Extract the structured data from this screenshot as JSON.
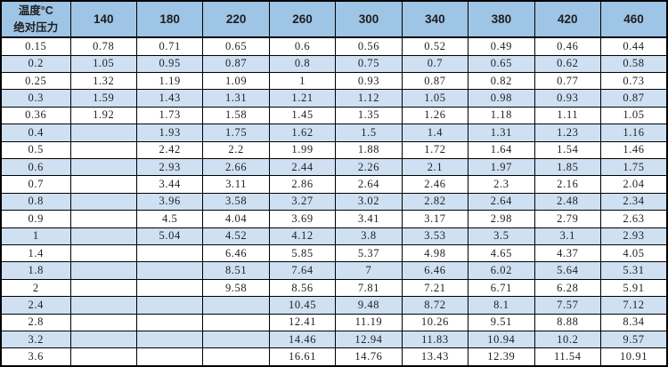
{
  "table": {
    "corner_line1": "温度°C",
    "corner_line2": "绝对压力",
    "temperature_columns": [
      "140",
      "180",
      "220",
      "260",
      "300",
      "340",
      "380",
      "420",
      "460"
    ],
    "rows": [
      {
        "pressure": "0.15",
        "values": [
          "0.78",
          "0.71",
          "0.65",
          "0.6",
          "0.56",
          "0.52",
          "0.49",
          "0.46",
          "0.44"
        ]
      },
      {
        "pressure": "0.2",
        "values": [
          "1.05",
          "0.95",
          "0.87",
          "0.8",
          "0.75",
          "0.7",
          "0.65",
          "0.62",
          "0.58"
        ]
      },
      {
        "pressure": "0.25",
        "values": [
          "1.32",
          "1.19",
          "1.09",
          "1",
          "0.93",
          "0.87",
          "0.82",
          "0.77",
          "0.73"
        ]
      },
      {
        "pressure": "0.3",
        "values": [
          "1.59",
          "1.43",
          "1.31",
          "1.21",
          "1.12",
          "1.05",
          "0.98",
          "0.93",
          "0.87"
        ]
      },
      {
        "pressure": "0.36",
        "values": [
          "1.92",
          "1.73",
          "1.58",
          "1.45",
          "1.35",
          "1.26",
          "1.18",
          "1.11",
          "1.05"
        ]
      },
      {
        "pressure": "0.4",
        "values": [
          "",
          "1.93",
          "1.75",
          "1.62",
          "1.5",
          "1.4",
          "1.31",
          "1.23",
          "1.16"
        ]
      },
      {
        "pressure": "0.5",
        "values": [
          "",
          "2.42",
          "2.2",
          "1.99",
          "1.88",
          "1.72",
          "1.64",
          "1.54",
          "1.46"
        ]
      },
      {
        "pressure": "0.6",
        "values": [
          "",
          "2.93",
          "2.66",
          "2.44",
          "2.26",
          "2.1",
          "1.97",
          "1.85",
          "1.75"
        ]
      },
      {
        "pressure": "0.7",
        "values": [
          "",
          "3.44",
          "3.11",
          "2.86",
          "2.64",
          "2.46",
          "2.3",
          "2.16",
          "2.04"
        ]
      },
      {
        "pressure": "0.8",
        "values": [
          "",
          "3.96",
          "3.58",
          "3.27",
          "3.02",
          "2.82",
          "2.64",
          "2.48",
          "2.34"
        ]
      },
      {
        "pressure": "0.9",
        "values": [
          "",
          "4.5",
          "4.04",
          "3.69",
          "3.41",
          "3.17",
          "2.98",
          "2.79",
          "2.63"
        ]
      },
      {
        "pressure": "1",
        "values": [
          "",
          "5.04",
          "4.52",
          "4.12",
          "3.8",
          "3.53",
          "3.5",
          "3.1",
          "2.93"
        ]
      },
      {
        "pressure": "1.4",
        "values": [
          "",
          "",
          "6.46",
          "5.85",
          "5.37",
          "4.98",
          "4.65",
          "4.37",
          "4.05"
        ]
      },
      {
        "pressure": "1.8",
        "values": [
          "",
          "",
          "8.51",
          "7.64",
          "7",
          "6.46",
          "6.02",
          "5.64",
          "5.31"
        ]
      },
      {
        "pressure": "2",
        "values": [
          "",
          "",
          "9.58",
          "8.56",
          "7.81",
          "7.21",
          "6.71",
          "6.28",
          "5.91"
        ]
      },
      {
        "pressure": "2.4",
        "values": [
          "",
          "",
          "",
          "10.45",
          "9.48",
          "8.72",
          "8.1",
          "7.57",
          "7.12"
        ]
      },
      {
        "pressure": "2.8",
        "values": [
          "",
          "",
          "",
          "12.41",
          "11.19",
          "10.26",
          "9.51",
          "8.88",
          "8.34"
        ]
      },
      {
        "pressure": "3.2",
        "values": [
          "",
          "",
          "",
          "14.46",
          "12.94",
          "11.83",
          "10.94",
          "10.2",
          "9.57"
        ]
      },
      {
        "pressure": "3.6",
        "values": [
          "",
          "",
          "",
          "16.61",
          "14.76",
          "13.43",
          "12.39",
          "11.54",
          "10.91"
        ]
      }
    ]
  },
  "colors": {
    "header_bg": "#9EC4E6",
    "stripe_bg": "#CEE0F2",
    "white_row_bg": "#FFFFFF",
    "border": "#000000",
    "text": "#1F1F1F"
  }
}
